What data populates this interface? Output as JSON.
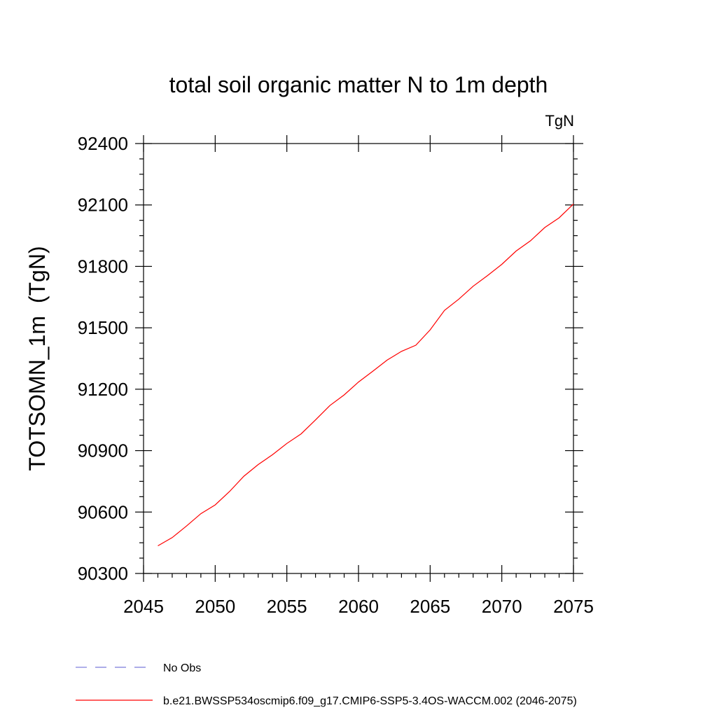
{
  "chart_data": {
    "type": "line",
    "title": "total soil organic matter N to 1m depth",
    "units_label": "TgN",
    "ylabel": "TOTSOMN_1m  (TgN)",
    "xlabel": "",
    "xlim": [
      2045,
      2075
    ],
    "ylim": [
      90300,
      92400
    ],
    "x_ticks": [
      2045,
      2050,
      2055,
      2060,
      2065,
      2070,
      2075
    ],
    "y_ticks": [
      90300,
      90600,
      90900,
      91200,
      91500,
      91800,
      92100,
      92400
    ],
    "grid": false,
    "legend_position": "bottom",
    "series": [
      {
        "name": "b.e21.BWSSP534oscmip6.f09_g17.CMIP6-SSP5-3.4OS-WACCM.002 (2046-2075)",
        "color": "#ff0000",
        "style": "solid",
        "x": [
          2046,
          2047,
          2048,
          2049,
          2050,
          2051,
          2052,
          2053,
          2054,
          2055,
          2056,
          2057,
          2058,
          2059,
          2060,
          2061,
          2062,
          2063,
          2064,
          2065,
          2066,
          2067,
          2068,
          2069,
          2070,
          2071,
          2072,
          2073,
          2074,
          2075
        ],
        "y": [
          90435,
          90475,
          90532,
          90592,
          90635,
          90700,
          90775,
          90832,
          90880,
          90935,
          90982,
          91050,
          91120,
          91172,
          91235,
          91288,
          91342,
          91385,
          91415,
          91490,
          91585,
          91640,
          91703,
          91755,
          91810,
          91875,
          91925,
          91990,
          92037,
          92105
        ]
      }
    ],
    "legend": [
      {
        "label": "No Obs",
        "color": "#7a7adb",
        "style": "dashed"
      },
      {
        "label": "b.e21.BWSSP534oscmip6.f09_g17.CMIP6-SSP5-3.4OS-WACCM.002 (2046-2075)",
        "color": "#ff0000",
        "style": "solid"
      }
    ]
  }
}
